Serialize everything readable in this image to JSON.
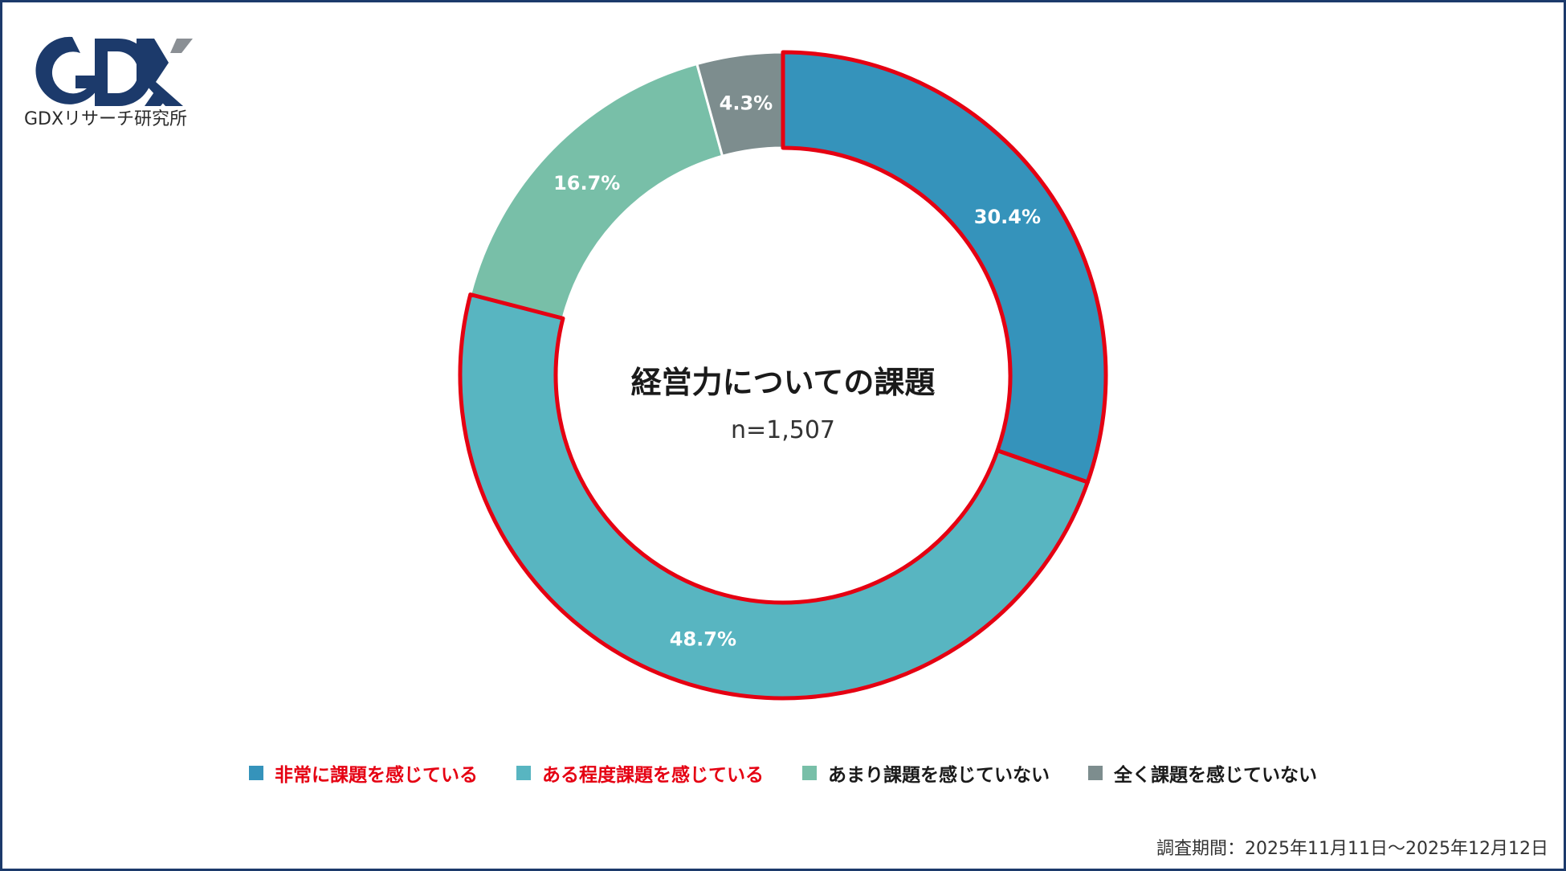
{
  "logo": {
    "mark_letters": "GDX",
    "caption": "GDXリサーチ研究所",
    "colors": {
      "primary": "#1c3a6b",
      "accent": "#8a8f94"
    }
  },
  "chart_data": {
    "type": "pie",
    "title": "経営力についての課題",
    "subtitle": "n=1,507",
    "categories": [
      "非常に課題を感じている",
      "ある程度課題を感じている",
      "あまり課題を感じていない",
      "全く課題を感じていない"
    ],
    "values": [
      30.4,
      48.7,
      16.7,
      4.3
    ],
    "value_labels": [
      "30.4%",
      "48.7%",
      "16.7%",
      "4.3%"
    ],
    "colors": [
      "#3593bb",
      "#58b5c1",
      "#78bfa8",
      "#7d8d8e"
    ],
    "highlighted": [
      true,
      true,
      false,
      false
    ],
    "highlight_color": "#e50012",
    "style": "donut",
    "legend_position": "bottom"
  },
  "legend": {
    "items": [
      {
        "label": "非常に課題を感じている",
        "color": "#3593bb",
        "text_color": "#e50012"
      },
      {
        "label": "ある程度課題を感じている",
        "color": "#58b5c1",
        "text_color": "#e50012"
      },
      {
        "label": "あまり課題を感じていない",
        "color": "#78bfa8",
        "text_color": "#1a1a1a"
      },
      {
        "label": "全く課題を感じていない",
        "color": "#7d8d8e",
        "text_color": "#1a1a1a"
      }
    ]
  },
  "footer": {
    "period": "調査期間：2025年11月11日～2025年12月12日"
  }
}
